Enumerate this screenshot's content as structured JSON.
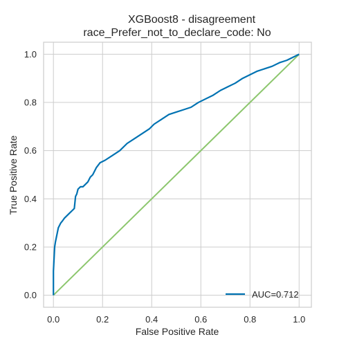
{
  "chart_data": {
    "type": "line",
    "title": "XGBoost8 - disagreement",
    "subtitle": "race_Prefer_not_to_declare_code: No",
    "xlabel": "False Positive Rate",
    "ylabel": "True Positive Rate",
    "xlim": [
      -0.04,
      1.05
    ],
    "ylim": [
      -0.05,
      1.05
    ],
    "xticks": [
      "0.0",
      "0.2",
      "0.4",
      "0.6",
      "0.8",
      "1.0"
    ],
    "yticks": [
      "0.0",
      "0.2",
      "0.4",
      "0.6",
      "0.8",
      "1.0"
    ],
    "grid": true,
    "legend_position": "lower-right",
    "series": [
      {
        "name": "AUC=0.712",
        "color": "#0072b2",
        "x": [
          0.0,
          0.0,
          0.003,
          0.005,
          0.008,
          0.012,
          0.016,
          0.02,
          0.025,
          0.03,
          0.038,
          0.045,
          0.055,
          0.065,
          0.075,
          0.085,
          0.09,
          0.095,
          0.1,
          0.105,
          0.11,
          0.12,
          0.13,
          0.14,
          0.15,
          0.16,
          0.175,
          0.19,
          0.21,
          0.24,
          0.27,
          0.3,
          0.33,
          0.36,
          0.39,
          0.41,
          0.44,
          0.47,
          0.5,
          0.53,
          0.56,
          0.59,
          0.62,
          0.65,
          0.68,
          0.71,
          0.74,
          0.77,
          0.8,
          0.83,
          0.86,
          0.89,
          0.92,
          0.95,
          0.97,
          0.99,
          1.0
        ],
        "y": [
          0.0,
          0.1,
          0.16,
          0.2,
          0.22,
          0.24,
          0.26,
          0.28,
          0.29,
          0.3,
          0.31,
          0.32,
          0.33,
          0.34,
          0.35,
          0.36,
          0.41,
          0.42,
          0.44,
          0.445,
          0.45,
          0.45,
          0.46,
          0.47,
          0.49,
          0.5,
          0.53,
          0.55,
          0.56,
          0.58,
          0.6,
          0.63,
          0.65,
          0.67,
          0.69,
          0.71,
          0.73,
          0.75,
          0.76,
          0.77,
          0.78,
          0.8,
          0.815,
          0.83,
          0.85,
          0.865,
          0.88,
          0.9,
          0.915,
          0.93,
          0.94,
          0.95,
          0.965,
          0.975,
          0.985,
          0.995,
          1.0
        ]
      },
      {
        "name": "",
        "color": "#8cc66d",
        "x": [
          0.0,
          1.0
        ],
        "y": [
          0.0,
          1.0
        ]
      }
    ]
  }
}
